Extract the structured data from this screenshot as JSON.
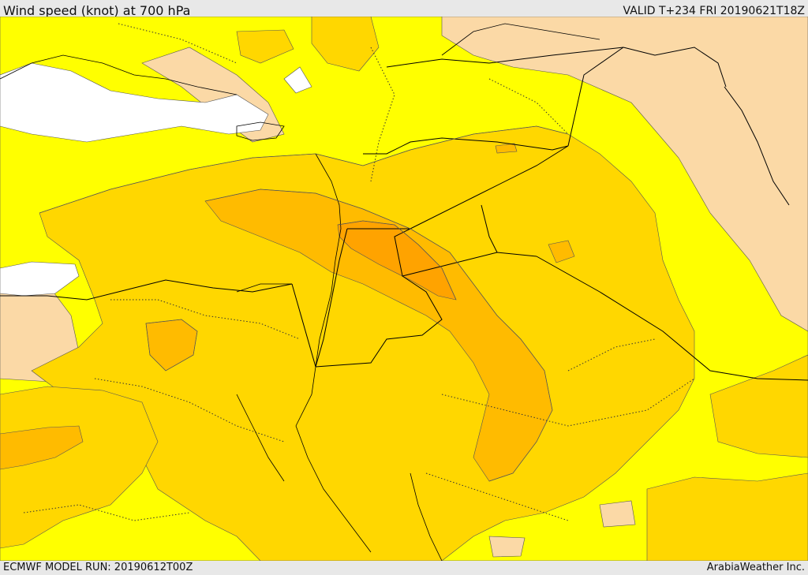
{
  "header": {
    "title": "Wind speed (knot) at 700 hPa",
    "valid": "VALID T+234 FRI  20190621T18Z"
  },
  "footer": {
    "model_run": "ECMWF MODEL RUN: 20190612T00Z",
    "credit": "ArabiaWeather Inc."
  },
  "map": {
    "layer_fills": {
      "calm": "#ffffff",
      "very_light": "#fbd9a6",
      "light": "#ffff00",
      "moderate": "#ffd700",
      "fresh": "#ffbb00",
      "strong": "#ffa300"
    },
    "line_colors": {
      "border": "#000000",
      "admin": "#333333",
      "contour": "#555555"
    }
  }
}
